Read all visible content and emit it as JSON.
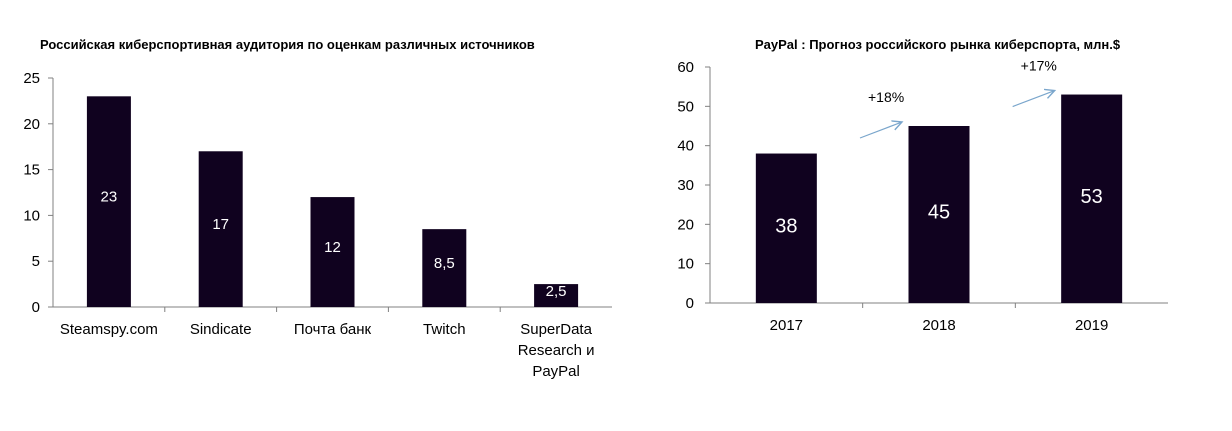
{
  "chart_data": [
    {
      "type": "bar",
      "title": "Российская киберспортивная аудитория по оценкам различных источников",
      "categories": [
        "Steamspy.com",
        "Sindicate",
        "Почта банк",
        "Twitch",
        "SuperData Research и PayPal"
      ],
      "category_lines": [
        [
          "Steamspy.com"
        ],
        [
          "Sindicate"
        ],
        [
          "Почта банк"
        ],
        [
          "Twitch"
        ],
        [
          "SuperData",
          "Research и",
          "PayPal"
        ]
      ],
      "values": [
        23,
        17,
        12,
        8.5,
        2.5
      ],
      "value_labels": [
        "23",
        "17",
        "12",
        "8,5",
        "2,5"
      ],
      "ylim": [
        0,
        25
      ],
      "yticks": [
        0,
        5,
        10,
        15,
        20,
        25
      ],
      "grid": false,
      "bar_color": "#10021f",
      "label_color": "#ffffff"
    },
    {
      "type": "bar",
      "title": "PayPal : Прогноз российского рынка киберспорта, млн.$",
      "categories": [
        "2017",
        "2018",
        "2019"
      ],
      "values": [
        38,
        45,
        53
      ],
      "value_labels": [
        "38",
        "45",
        "53"
      ],
      "ylim": [
        0,
        60
      ],
      "yticks": [
        0,
        10,
        20,
        30,
        40,
        50,
        60
      ],
      "grid": false,
      "bar_color": "#10021f",
      "label_color": "#ffffff",
      "annotations": [
        {
          "text": "+18%",
          "between": [
            "2017",
            "2018"
          ]
        },
        {
          "text": "+17%",
          "between": [
            "2018",
            "2019"
          ]
        }
      ],
      "arrow_color": "#7aa6cc"
    }
  ]
}
